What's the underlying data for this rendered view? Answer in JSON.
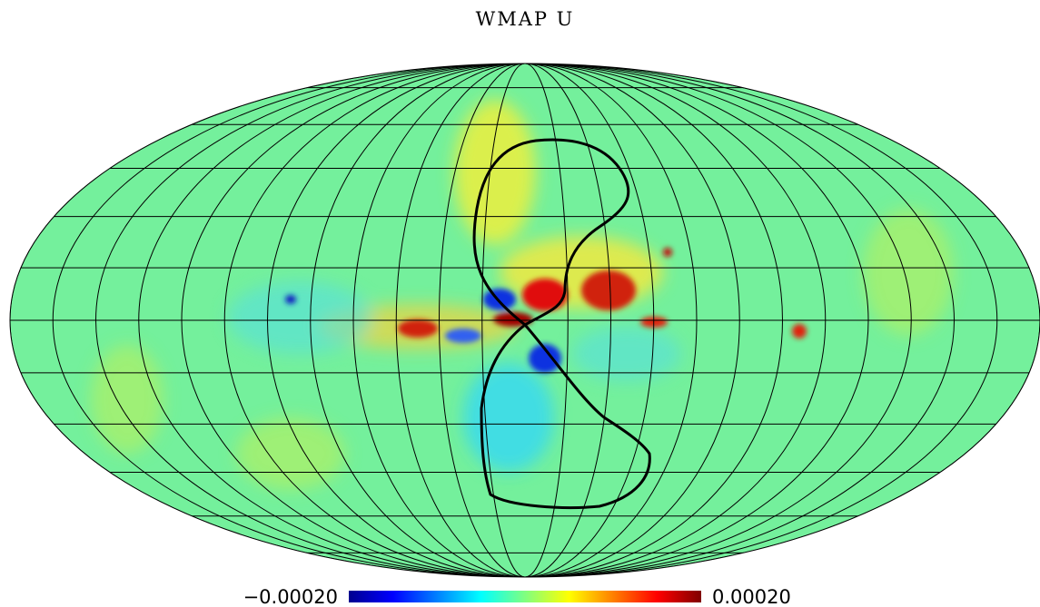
{
  "title": "WMAP U",
  "colorbar": {
    "range": [
      {
        "value": -0.0002,
        "label": "−0.00020"
      },
      {
        "value": 0.0002,
        "label": "0.00020"
      }
    ]
  }
}
